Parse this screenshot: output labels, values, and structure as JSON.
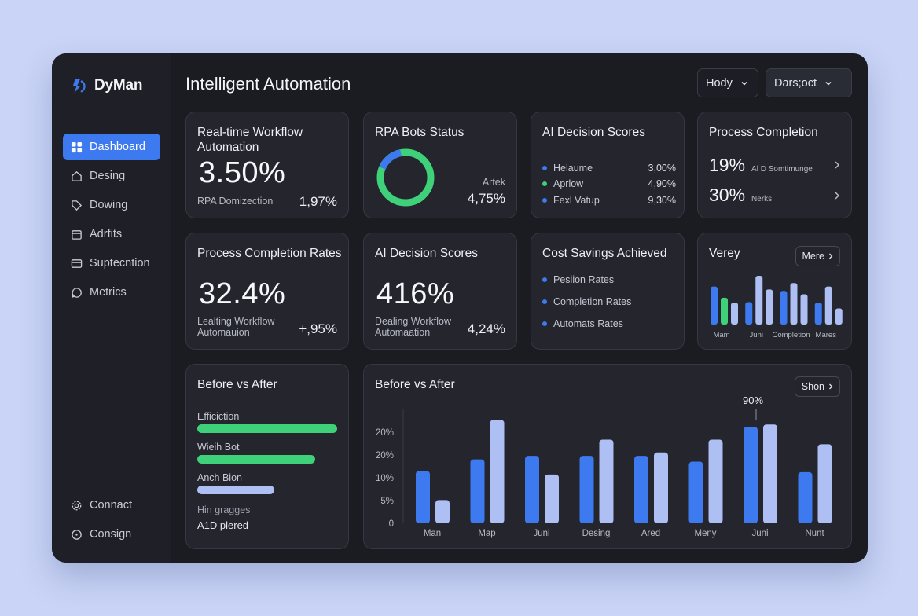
{
  "brand": {
    "name": "DyMan"
  },
  "nav": {
    "items": [
      {
        "label": "Dashboard",
        "icon": "grid-icon",
        "active": true
      },
      {
        "label": "Desing",
        "icon": "home-icon"
      },
      {
        "label": "Dowing",
        "icon": "tag-icon"
      },
      {
        "label": "Adrfits",
        "icon": "calendar-icon"
      },
      {
        "label": "Suptecntion",
        "icon": "card-icon"
      },
      {
        "label": "Metrics",
        "icon": "chat-icon"
      }
    ],
    "bottom": [
      {
        "label": "Connact",
        "icon": "gear-icon"
      },
      {
        "label": "Consign",
        "icon": "clock-icon"
      }
    ]
  },
  "header": {
    "title": "Intelligent Automation",
    "dropdown1": "Hody",
    "dropdown2": "Dars;oct"
  },
  "cards": {
    "workflow": {
      "title": "Real-time Workflow Automation",
      "value": "3.50%",
      "sub": "RPA Domizection",
      "side": "1,97%"
    },
    "rpa": {
      "title": "RPA Bots Status",
      "side_label": "Artek",
      "side_value": "4,75%"
    },
    "ai_scores": {
      "title": "AI Decision Scores",
      "rows": [
        {
          "label": "Helaume",
          "value": "3,00%",
          "color": "#3d7af0"
        },
        {
          "label": "Aprlow",
          "value": "4,90%",
          "color": "#3fd07a"
        },
        {
          "label": "Fexl Vatup",
          "value": "9,30%",
          "color": "#3d7af0"
        }
      ]
    },
    "process_completion": {
      "title": "Process Completion",
      "rows": [
        {
          "value": "19%",
          "label": "Al D Somtimunge"
        },
        {
          "value": "30%",
          "label": "Nerks"
        }
      ]
    },
    "process_rates": {
      "title": "Process Completion Rates",
      "value": "32.4%",
      "sub": "Lealting Workflow Automauion",
      "side": "+,95%"
    },
    "ai_scores2": {
      "title": "AI Decision Scores",
      "value": "416%",
      "sub": "Dealing Workflow Automaation",
      "side": "4,24%"
    },
    "cost": {
      "title": "Cost Savings Achieved",
      "rows": [
        {
          "label": "Pesiion Rates"
        },
        {
          "label": "Completion Rates"
        },
        {
          "label": "Automats Rates"
        }
      ]
    },
    "verey": {
      "title": "Verey",
      "button": "Mere",
      "labels": [
        "Mam",
        "Juni",
        "Completion",
        "Mares"
      ]
    },
    "before_after_left": {
      "title": "Before vs After",
      "bars": [
        {
          "label": "Efficiction",
          "value": 1.0,
          "color": "#3fd07a"
        },
        {
          "label": "Wieih Bot",
          "value": 0.84,
          "color": "#3fd07a"
        },
        {
          "label": "Anch Bion",
          "value": 0.55,
          "color": "#aebff4"
        }
      ],
      "note": "Hin gragges",
      "note2": "A1D plered"
    },
    "before_after_chart": {
      "title": "Before vs After",
      "button": "Shon",
      "peak_label": "90%"
    }
  },
  "colors": {
    "accent": "#3d7af0",
    "green": "#3fd07a",
    "light": "#aebff4"
  },
  "chart_data": [
    {
      "type": "bar",
      "title": "Verey",
      "categories": [
        "Mam",
        "Juni",
        "Completion",
        "Mares"
      ],
      "series": [
        {
          "values": [
            0.78,
            0.46,
            0.69,
            0.45
          ]
        },
        {
          "values": [
            0.55,
            1.0,
            0.85,
            0.78
          ]
        },
        {
          "values": [
            0.45,
            0.72,
            0.62,
            0.33
          ]
        }
      ],
      "colors_note": "blue / green / light-blue bars"
    },
    {
      "type": "bar",
      "title": "Before vs After",
      "categories": [
        "Man",
        "Map",
        "Juni",
        "Desing",
        "Ared",
        "Meny",
        "Juni",
        "Nunt"
      ],
      "yticks": [
        "0",
        "5%",
        "10%",
        "20%",
        "20%"
      ],
      "series": [
        {
          "values": [
            0.45,
            0.55,
            0.58,
            0.58,
            0.58,
            0.53,
            0.83,
            0.44
          ]
        },
        {
          "values": [
            0.2,
            0.89,
            0.42,
            0.72,
            0.61,
            0.72,
            0.85,
            0.68
          ]
        }
      ],
      "annotations": [
        "90%"
      ]
    }
  ]
}
